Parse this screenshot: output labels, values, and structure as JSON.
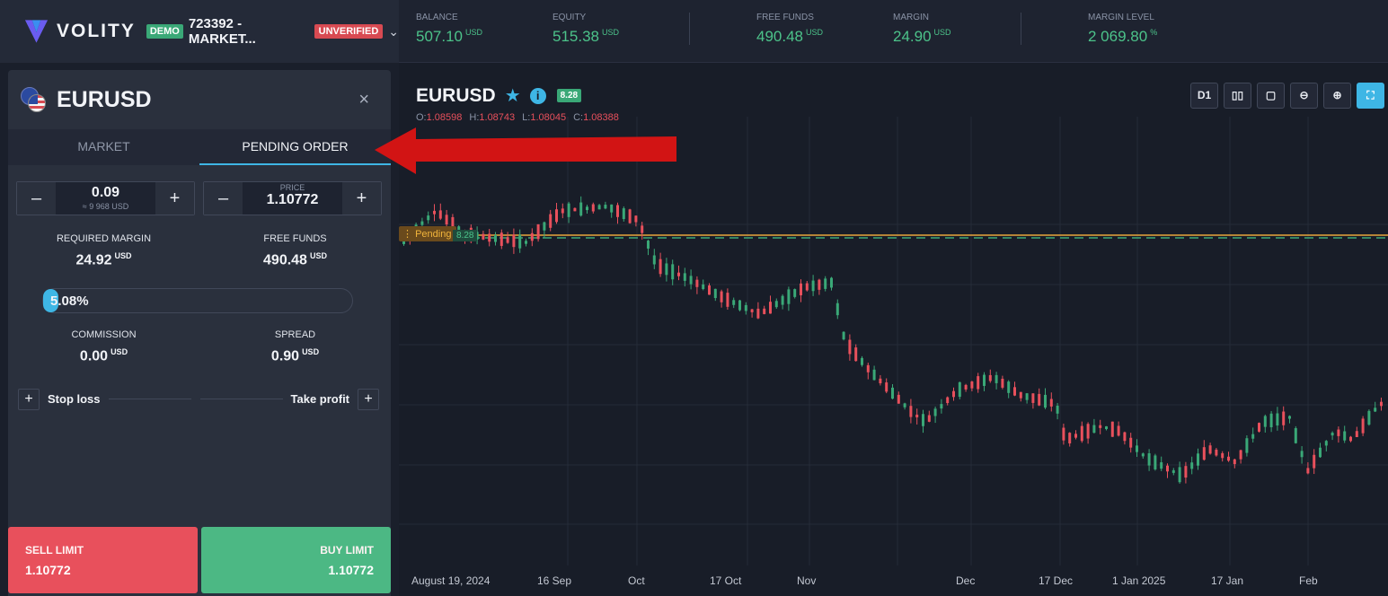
{
  "header": {
    "logo_text": "VOLITY",
    "demo_badge": "DEMO",
    "account": "723392 - MARKET...",
    "unverified_badge": "UNVERIFIED",
    "stats": [
      {
        "label": "BALANCE",
        "value": "507.10",
        "unit": "USD"
      },
      {
        "label": "EQUITY",
        "value": "515.38",
        "unit": "USD"
      },
      {
        "label": "FREE FUNDS",
        "value": "490.48",
        "unit": "USD"
      },
      {
        "label": "MARGIN",
        "value": "24.90",
        "unit": "USD"
      },
      {
        "label": "MARGIN LEVEL",
        "value": "2 069.80",
        "unit": "%"
      }
    ]
  },
  "panel": {
    "symbol": "EURUSD",
    "close_icon": "close-icon",
    "tabs": [
      {
        "label": "MARKET",
        "active": false
      },
      {
        "label": "PENDING ORDER",
        "active": true
      }
    ],
    "volume": {
      "value": "0.09",
      "sub": "≈ 9 968 USD"
    },
    "price": {
      "label": "PRICE",
      "value": "1.10772"
    },
    "required_margin": {
      "label": "REQUIRED MARGIN",
      "value": "24.92",
      "unit": "USD"
    },
    "free_funds": {
      "label": "FREE FUNDS",
      "value": "490.48",
      "unit": "USD"
    },
    "progress": {
      "percent": 5.08,
      "text": "5.08%"
    },
    "commission": {
      "label": "COMMISSION",
      "value": "0.00",
      "unit": "USD"
    },
    "spread": {
      "label": "SPREAD",
      "value": "0.90",
      "unit": "USD"
    },
    "stop_loss_label": "Stop loss",
    "take_profit_label": "Take profit",
    "sell": {
      "label": "SELL LIMIT",
      "price": "1.10772"
    },
    "buy": {
      "label": "BUY LIMIT",
      "price": "1.10772"
    }
  },
  "chart": {
    "symbol": "EURUSD",
    "spread_badge": "8.28",
    "ohlc": {
      "o": "1.08598",
      "h": "1.08743",
      "l": "1.08045",
      "c": "1.08388"
    },
    "timeframe": "D1",
    "pending_label": "Pending",
    "pending_value": "8.28",
    "x_labels": [
      "August 19, 2024",
      "16 Sep",
      "Oct",
      "17 Oct",
      "Nov",
      "Dec",
      "17 Dec",
      "1 Jan 2025",
      "17 Jan",
      "Feb"
    ],
    "colors": {
      "up": "#3aa877",
      "down": "#e8505c",
      "pending": "#e8a63c",
      "accent": "#3eb6e5"
    }
  }
}
